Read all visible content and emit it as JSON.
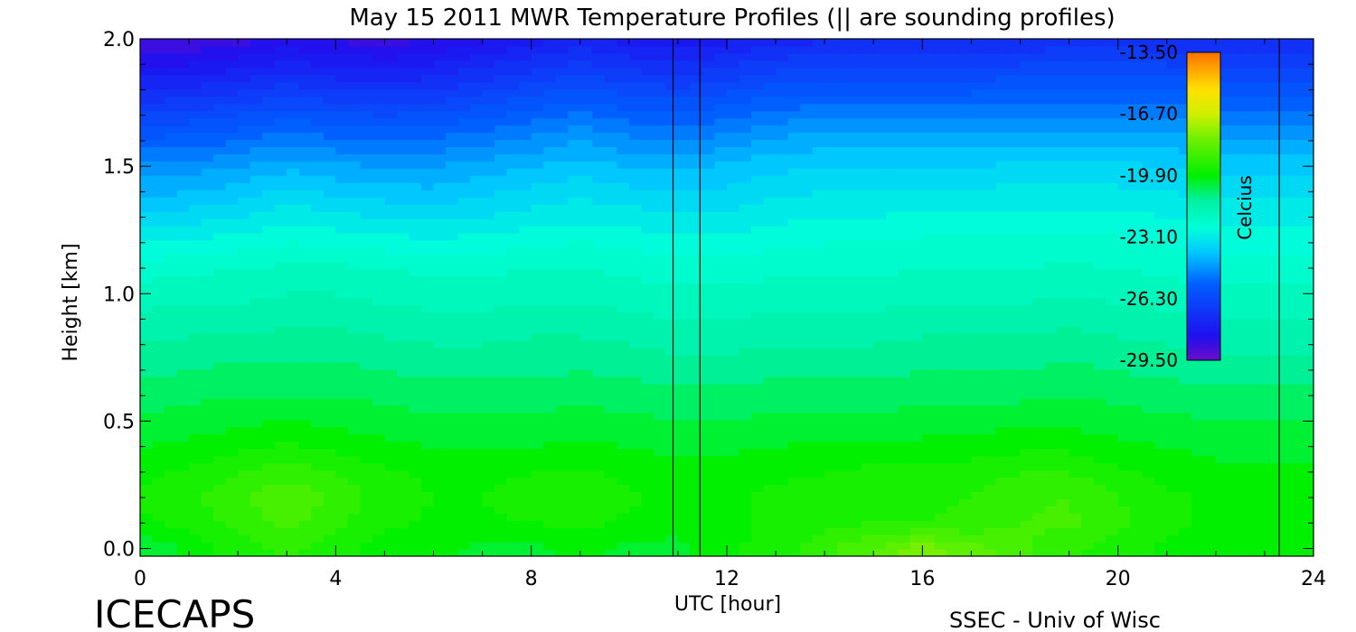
{
  "chart_data": {
    "type": "heatmap",
    "title": "May 15 2011 MWR Temperature Profiles (|| are sounding profiles)",
    "xlabel": "UTC [hour]",
    "ylabel": "Height [km]",
    "xlim": [
      0,
      24
    ],
    "ylim": [
      -0.03,
      2.0
    ],
    "x_ticks": [
      "0",
      "4",
      "8",
      "12",
      "16",
      "20",
      "24"
    ],
    "y_ticks": [
      "0.0",
      "0.5",
      "1.0",
      "1.5",
      "2.0"
    ],
    "colorbar": {
      "label": "Celcius",
      "ticks": [
        "-13.50",
        "-16.70",
        "-19.90",
        "-23.10",
        "-26.30",
        "-29.50"
      ],
      "range": [
        -29.5,
        -13.5
      ]
    },
    "sounding_times": [
      10.9,
      11.45,
      23.3
    ],
    "time_hours": [
      0,
      1,
      2,
      3,
      4,
      5,
      6,
      7,
      8,
      9,
      10,
      11,
      12,
      13,
      14,
      15,
      16,
      17,
      18,
      19,
      20,
      21,
      22,
      23,
      24
    ],
    "heights_km": [
      0.0,
      0.1,
      0.2,
      0.3,
      0.4,
      0.5,
      0.6,
      0.7,
      0.8,
      0.9,
      1.0,
      1.1,
      1.2,
      1.3,
      1.4,
      1.5,
      1.6,
      1.7,
      1.8,
      1.9,
      2.0
    ],
    "temperature_c": [
      [
        -20.5,
        -20.0,
        -19.5,
        -19.2,
        -19.5,
        -20.0,
        -20.0,
        -20.2,
        -20.2,
        -20.0,
        -20.2,
        -20.2,
        -19.8,
        -19.5,
        -19.0,
        -18.5,
        -17.8,
        -18.3,
        -18.8,
        -19.2,
        -19.5,
        -19.8,
        -20.0,
        -20.0,
        -20.0
      ],
      [
        -19.8,
        -19.6,
        -19.2,
        -18.8,
        -19.2,
        -19.6,
        -19.8,
        -19.8,
        -19.7,
        -19.6,
        -19.8,
        -20.0,
        -19.8,
        -19.6,
        -19.4,
        -19.3,
        -19.3,
        -19.2,
        -18.9,
        -18.8,
        -19.2,
        -19.6,
        -19.8,
        -19.8,
        -19.8
      ],
      [
        -19.6,
        -19.4,
        -19.0,
        -18.6,
        -19.0,
        -19.5,
        -19.7,
        -19.7,
        -19.5,
        -19.4,
        -19.6,
        -19.9,
        -19.8,
        -19.6,
        -19.5,
        -19.4,
        -19.4,
        -19.3,
        -19.0,
        -18.9,
        -19.3,
        -19.6,
        -19.8,
        -19.8,
        -19.8
      ],
      [
        -19.8,
        -19.6,
        -19.3,
        -19.0,
        -19.3,
        -19.6,
        -19.8,
        -19.8,
        -19.7,
        -19.6,
        -19.8,
        -20.0,
        -19.9,
        -19.8,
        -19.7,
        -19.6,
        -19.6,
        -19.5,
        -19.3,
        -19.3,
        -19.6,
        -19.8,
        -20.0,
        -20.0,
        -20.0
      ],
      [
        -20.1,
        -20.0,
        -19.8,
        -19.6,
        -19.8,
        -20.0,
        -20.1,
        -20.1,
        -20.1,
        -20.0,
        -20.1,
        -20.2,
        -20.2,
        -20.1,
        -20.0,
        -20.0,
        -20.0,
        -19.9,
        -19.8,
        -19.8,
        -20.0,
        -20.1,
        -20.2,
        -20.2,
        -20.2
      ],
      [
        -20.4,
        -20.3,
        -20.2,
        -20.1,
        -20.2,
        -20.3,
        -20.4,
        -20.4,
        -20.4,
        -20.3,
        -20.4,
        -20.5,
        -20.5,
        -20.4,
        -20.4,
        -20.4,
        -20.3,
        -20.3,
        -20.2,
        -20.2,
        -20.3,
        -20.4,
        -20.5,
        -20.5,
        -20.5
      ],
      [
        -20.7,
        -20.6,
        -20.5,
        -20.5,
        -20.5,
        -20.6,
        -20.7,
        -20.7,
        -20.7,
        -20.6,
        -20.7,
        -20.8,
        -20.8,
        -20.7,
        -20.7,
        -20.7,
        -20.6,
        -20.6,
        -20.6,
        -20.5,
        -20.6,
        -20.7,
        -20.8,
        -20.8,
        -20.8
      ],
      [
        -21.0,
        -20.9,
        -20.8,
        -20.8,
        -20.8,
        -20.9,
        -21.0,
        -21.0,
        -21.0,
        -20.9,
        -21.0,
        -21.1,
        -21.1,
        -21.0,
        -21.0,
        -21.0,
        -20.9,
        -20.9,
        -20.9,
        -20.8,
        -20.9,
        -21.0,
        -21.1,
        -21.1,
        -21.1
      ],
      [
        -21.3,
        -21.2,
        -21.2,
        -21.1,
        -21.1,
        -21.2,
        -21.3,
        -21.3,
        -21.2,
        -21.2,
        -21.3,
        -21.4,
        -21.4,
        -21.3,
        -21.3,
        -21.3,
        -21.2,
        -21.2,
        -21.2,
        -21.1,
        -21.2,
        -21.3,
        -21.4,
        -21.4,
        -21.4
      ],
      [
        -21.6,
        -21.5,
        -21.5,
        -21.4,
        -21.4,
        -21.5,
        -21.6,
        -21.6,
        -21.5,
        -21.5,
        -21.6,
        -21.7,
        -21.7,
        -21.6,
        -21.6,
        -21.6,
        -21.5,
        -21.5,
        -21.5,
        -21.4,
        -21.5,
        -21.6,
        -21.7,
        -21.7,
        -21.7
      ],
      [
        -21.9,
        -21.8,
        -21.8,
        -21.7,
        -21.7,
        -21.8,
        -21.9,
        -21.9,
        -21.8,
        -21.8,
        -21.9,
        -22.0,
        -22.0,
        -21.9,
        -21.9,
        -21.9,
        -21.8,
        -21.8,
        -21.8,
        -21.7,
        -21.8,
        -21.9,
        -22.0,
        -22.0,
        -22.0
      ],
      [
        -22.3,
        -22.2,
        -22.1,
        -22.0,
        -22.0,
        -22.1,
        -22.2,
        -22.2,
        -22.1,
        -22.1,
        -22.2,
        -22.3,
        -22.3,
        -22.2,
        -22.2,
        -22.2,
        -22.1,
        -22.1,
        -22.1,
        -22.0,
        -22.1,
        -22.2,
        -22.3,
        -22.3,
        -22.3
      ],
      [
        -22.9,
        -22.8,
        -22.7,
        -22.5,
        -22.6,
        -22.7,
        -22.8,
        -22.7,
        -22.6,
        -22.5,
        -22.6,
        -22.7,
        -22.7,
        -22.6,
        -22.5,
        -22.5,
        -22.4,
        -22.4,
        -22.4,
        -22.4,
        -22.4,
        -22.5,
        -22.6,
        -22.6,
        -22.6
      ],
      [
        -23.6,
        -23.5,
        -23.3,
        -23.0,
        -23.2,
        -23.3,
        -23.4,
        -23.3,
        -23.1,
        -23.0,
        -23.1,
        -23.2,
        -23.2,
        -23.0,
        -22.9,
        -22.9,
        -22.8,
        -22.8,
        -22.8,
        -22.8,
        -22.8,
        -22.9,
        -23.0,
        -23.0,
        -23.0
      ],
      [
        -24.2,
        -24.1,
        -23.9,
        -23.6,
        -23.8,
        -23.9,
        -24.0,
        -23.8,
        -23.6,
        -23.4,
        -23.6,
        -23.7,
        -23.6,
        -23.4,
        -23.3,
        -23.3,
        -23.2,
        -23.2,
        -23.2,
        -23.2,
        -23.2,
        -23.3,
        -23.4,
        -23.4,
        -23.4
      ],
      [
        -24.8,
        -24.7,
        -24.5,
        -24.2,
        -24.4,
        -24.5,
        -24.5,
        -24.3,
        -24.1,
        -23.9,
        -24.1,
        -24.2,
        -24.0,
        -23.8,
        -23.7,
        -23.7,
        -23.7,
        -23.7,
        -23.6,
        -23.6,
        -23.6,
        -23.7,
        -23.8,
        -23.8,
        -23.8
      ],
      [
        -25.6,
        -25.5,
        -25.3,
        -25.0,
        -25.2,
        -25.3,
        -25.2,
        -25.0,
        -24.8,
        -24.5,
        -24.8,
        -24.9,
        -24.7,
        -24.4,
        -24.3,
        -24.3,
        -24.3,
        -24.3,
        -24.3,
        -24.2,
        -24.2,
        -24.3,
        -24.4,
        -24.4,
        -24.4
      ],
      [
        -26.4,
        -26.3,
        -26.1,
        -25.8,
        -26.0,
        -26.1,
        -26.0,
        -25.8,
        -25.5,
        -25.2,
        -25.5,
        -25.6,
        -25.4,
        -25.1,
        -25.0,
        -25.0,
        -25.0,
        -25.0,
        -25.0,
        -24.9,
        -24.9,
        -25.0,
        -25.1,
        -25.1,
        -25.1
      ],
      [
        -27.3,
        -27.2,
        -27.0,
        -26.7,
        -26.9,
        -27.0,
        -26.9,
        -26.6,
        -26.3,
        -26.0,
        -26.3,
        -26.4,
        -26.2,
        -25.9,
        -25.8,
        -25.8,
        -25.8,
        -25.8,
        -25.7,
        -25.6,
        -25.6,
        -25.7,
        -25.8,
        -25.8,
        -25.8
      ],
      [
        -28.2,
        -28.1,
        -27.9,
        -27.6,
        -27.8,
        -27.9,
        -27.7,
        -27.4,
        -27.1,
        -26.8,
        -27.1,
        -27.2,
        -27.0,
        -26.7,
        -26.6,
        -26.6,
        -26.6,
        -26.6,
        -26.5,
        -26.4,
        -26.4,
        -26.5,
        -26.6,
        -26.6,
        -26.6
      ],
      [
        -29.0,
        -28.9,
        -28.7,
        -28.4,
        -28.6,
        -28.7,
        -28.5,
        -28.2,
        -27.9,
        -27.6,
        -27.9,
        -28.0,
        -27.8,
        -27.5,
        -27.4,
        -27.4,
        -27.4,
        -27.4,
        -27.3,
        -27.2,
        -27.2,
        -27.3,
        -27.4,
        -27.4,
        -27.4
      ]
    ]
  },
  "footer": {
    "left_label": "ICECAPS",
    "right_label": "SSEC - Univ of Wisc"
  }
}
